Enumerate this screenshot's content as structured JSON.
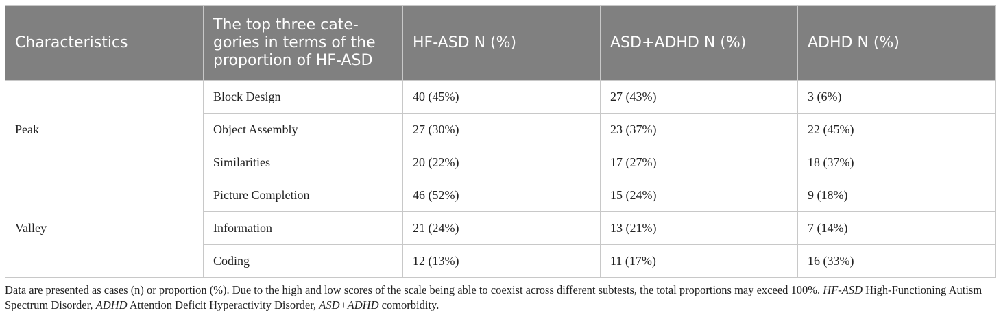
{
  "headers": [
    "Characteristics",
    "The top three cate-gories in terms of the proportion of HF-ASD",
    "HF-ASD N (%)",
    "ASD+ADHD N (%)",
    "ADHD N (%)"
  ],
  "groups": [
    {
      "label": "Peak",
      "rows": [
        [
          "Block Design",
          "40 (45%)",
          "27 (43%)",
          "3 (6%)"
        ],
        [
          "Object Assembly",
          "27 (30%)",
          "23 (37%)",
          "22 (45%)"
        ],
        [
          "Similarities",
          "20 (22%)",
          "17 (27%)",
          "18 (37%)"
        ]
      ]
    },
    {
      "label": "Valley",
      "rows": [
        [
          "Picture Completion",
          "46 (52%)",
          "15 (24%)",
          "9 (18%)"
        ],
        [
          "Information",
          "21 (24%)",
          "13 (21%)",
          "7 (14%)"
        ],
        [
          "Coding",
          "12 (13%)",
          "11 (17%)",
          "16 (33%)"
        ]
      ]
    }
  ],
  "footnote": {
    "text1": "Data are presented as cases (n) or proportion (%). Due to the high and low scores of the scale being able to coexist across different subtests, the total proportions may exceed 100%. ",
    "abbr1": "HF-ASD",
    "text2": " High-Functioning Autism Spectrum Disorder, ",
    "abbr2": "ADHD",
    "text3": " Attention Deficit Hyperactivity Disorder, ",
    "abbr3": "ASD+ADHD",
    "text4": " comorbidity."
  }
}
